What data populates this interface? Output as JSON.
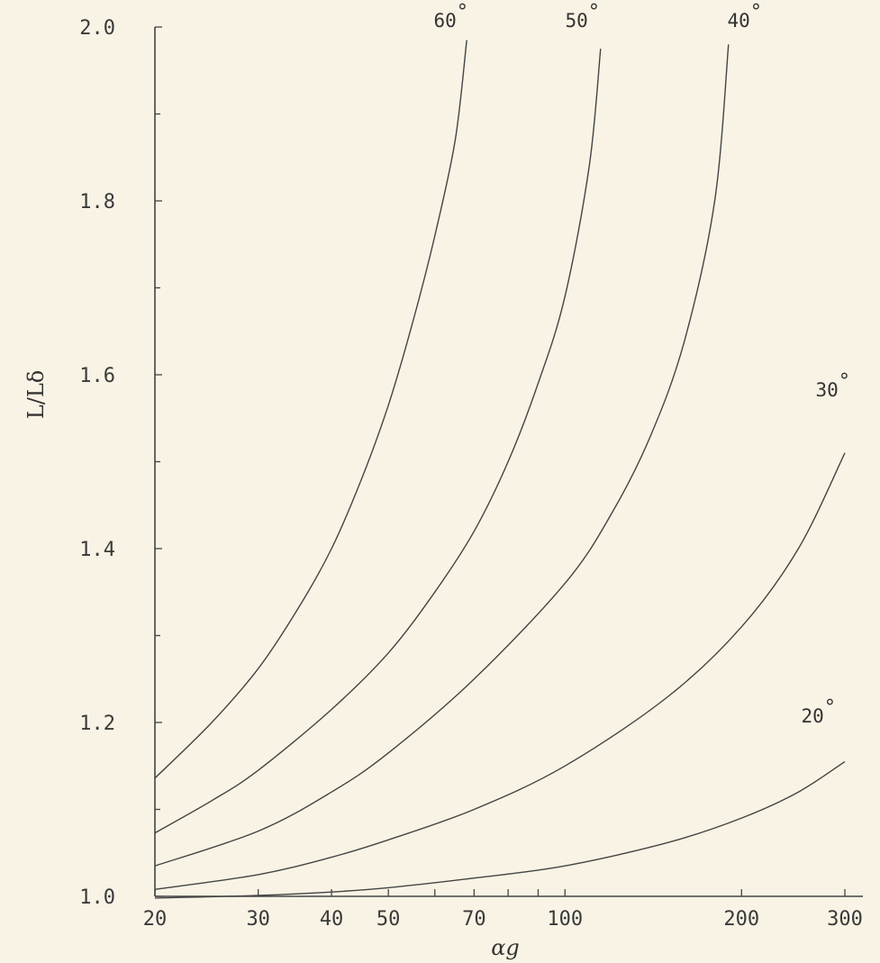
{
  "chart_data": {
    "type": "line",
    "title": "",
    "xlabel": "αg",
    "ylabel": "L/Lδ",
    "xscale": "log",
    "xlim": [
      20,
      300
    ],
    "ylim": [
      1.0,
      2.0
    ],
    "x_ticks": [
      20,
      30,
      40,
      50,
      70,
      100,
      200,
      300
    ],
    "x_minor_ticks": [
      60,
      80,
      90
    ],
    "y_ticks": [
      1.0,
      1.2,
      1.4,
      1.6,
      1.8,
      2.0
    ],
    "y_tick_labels": [
      "1.0",
      "1.2",
      "1.4",
      "1.6",
      "1.8",
      "2.0"
    ],
    "x_tick_labels": [
      "20",
      "30",
      "40",
      "50",
      "70",
      "100",
      "200",
      "300"
    ],
    "y_minor_ticks": [
      1.1,
      1.3,
      1.5,
      1.7,
      1.9
    ],
    "grid": false,
    "series": [
      {
        "name": "60°",
        "label_parts": [
          "60",
          "°"
        ],
        "x": [
          20,
          25,
          30,
          35,
          40,
          45,
          50,
          55,
          60,
          65,
          68
        ],
        "y": [
          1.136,
          1.2,
          1.262,
          1.33,
          1.4,
          1.48,
          1.565,
          1.66,
          1.76,
          1.87,
          1.985
        ]
      },
      {
        "name": "50°",
        "label_parts": [
          "50",
          "°"
        ],
        "x": [
          20,
          25,
          30,
          40,
          50,
          60,
          70,
          80,
          90,
          100,
          110,
          115
        ],
        "y": [
          1.073,
          1.11,
          1.145,
          1.215,
          1.28,
          1.35,
          1.42,
          1.5,
          1.59,
          1.69,
          1.84,
          1.975
        ]
      },
      {
        "name": "40°",
        "label_parts": [
          "40",
          "°"
        ],
        "x": [
          20,
          30,
          40,
          50,
          70,
          100,
          120,
          140,
          160,
          180,
          190
        ],
        "y": [
          1.035,
          1.075,
          1.12,
          1.165,
          1.25,
          1.36,
          1.44,
          1.53,
          1.64,
          1.8,
          1.98
        ]
      },
      {
        "name": "30°",
        "label_parts": [
          "30",
          "°"
        ],
        "x": [
          20,
          30,
          40,
          50,
          70,
          100,
          150,
          200,
          250,
          300
        ],
        "y": [
          1.008,
          1.025,
          1.045,
          1.065,
          1.1,
          1.15,
          1.23,
          1.31,
          1.4,
          1.51
        ]
      },
      {
        "name": "20°",
        "label_parts": [
          "20",
          "°"
        ],
        "x": [
          20,
          30,
          40,
          50,
          70,
          100,
          150,
          200,
          250,
          300
        ],
        "y": [
          0.998,
          1.001,
          1.005,
          1.01,
          1.021,
          1.035,
          1.062,
          1.09,
          1.12,
          1.155
        ]
      }
    ]
  }
}
